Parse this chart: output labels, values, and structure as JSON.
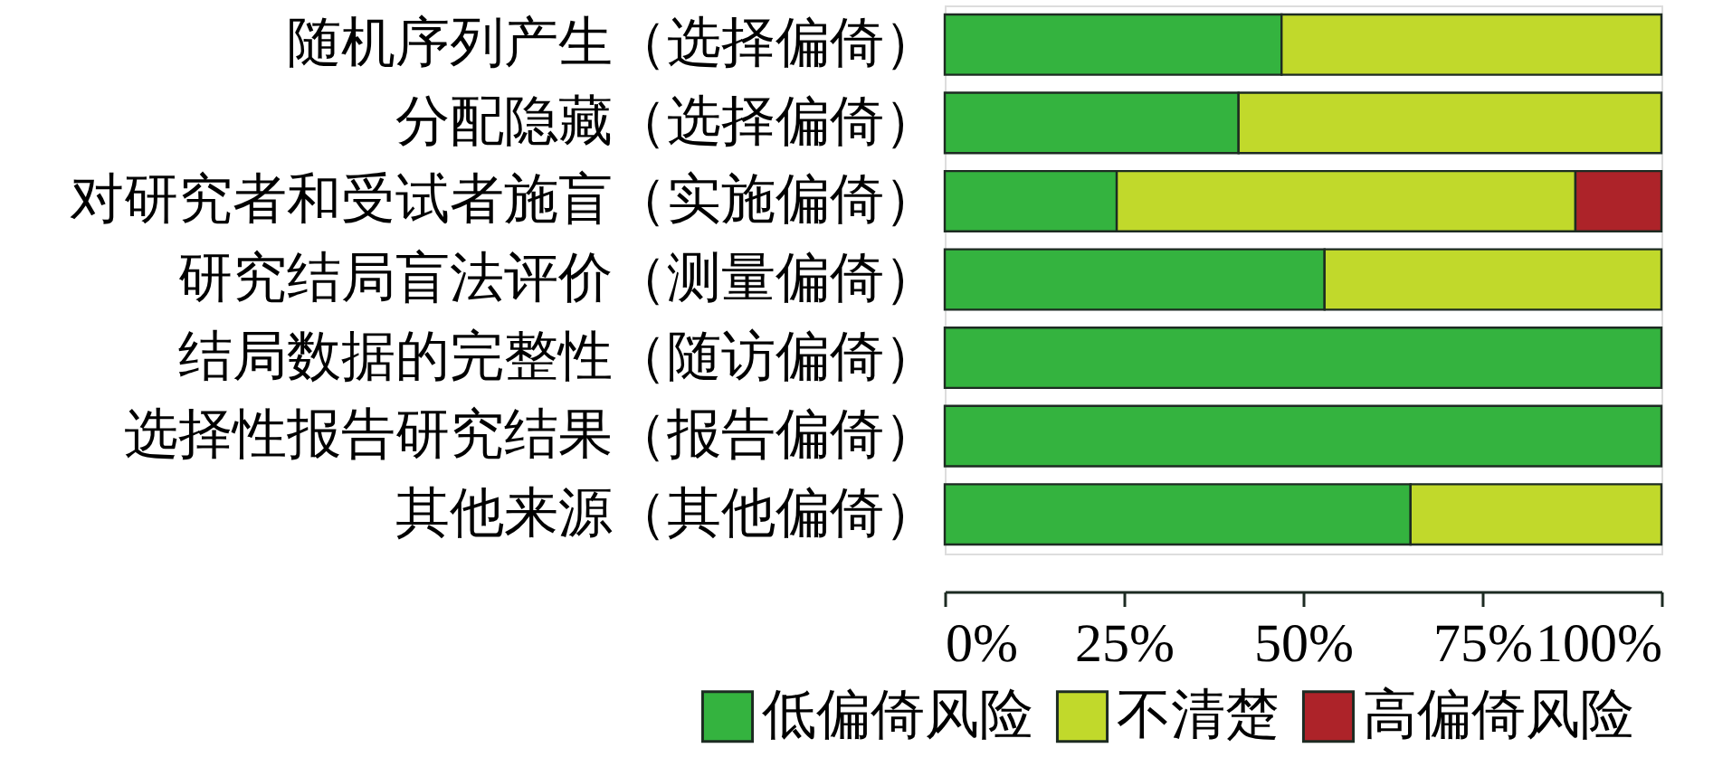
{
  "chart_data": {
    "type": "bar",
    "orientation": "horizontal",
    "stacked": true,
    "categories": [
      "随机序列产生（选择偏倚）",
      "分配隐藏（选择偏倚）",
      "对研究者和受试者施盲（实施偏倚）",
      "研究结局盲法评价（测量偏倚）",
      "结局数据的完整性（随访偏倚）",
      "选择性报告研究结果（报告偏倚）",
      "其他来源（其他偏倚）"
    ],
    "series": [
      {
        "name": "低偏倚风险",
        "color": "#34b33f",
        "values": [
          47,
          41,
          24,
          53,
          100,
          100,
          65
        ]
      },
      {
        "name": "不清楚",
        "color": "#c1d92b",
        "values": [
          53,
          59,
          64,
          47,
          null,
          null,
          35
        ]
      },
      {
        "name": "高偏倚风险",
        "color": "#ad2329",
        "values": [
          null,
          null,
          12,
          null,
          null,
          null,
          null
        ]
      }
    ],
    "xlim": [
      0,
      100
    ],
    "xticks": [
      {
        "value": 0,
        "label": "0%"
      },
      {
        "value": 25,
        "label": "25%"
      },
      {
        "value": 50,
        "label": "50%"
      },
      {
        "value": 75,
        "label": "75%"
      },
      {
        "value": 100,
        "label": "100%"
      }
    ],
    "legend": "bottom"
  }
}
